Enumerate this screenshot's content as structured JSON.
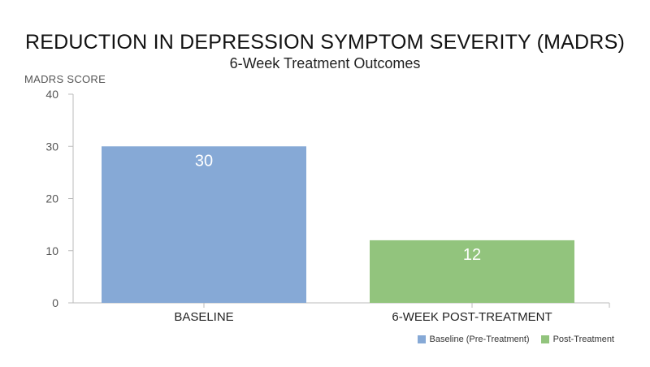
{
  "chart_data": {
    "type": "bar",
    "title": "REDUCTION IN DEPRESSION SYMPTOM SEVERITY (MADRS)",
    "subtitle": "6-Week Treatment Outcomes",
    "ylabel": "MADRS SCORE",
    "xlabel": "",
    "categories": [
      "BASELINE",
      "6-WEEK POST-TREATMENT"
    ],
    "values": [
      30,
      12
    ],
    "data_labels": [
      "30",
      "12"
    ],
    "ylim": [
      0,
      40
    ],
    "yticks": [
      0,
      10,
      20,
      30,
      40
    ],
    "grid": false,
    "bar_colors": [
      "#86a9d6",
      "#92c47d"
    ],
    "legend": {
      "placement": "bottom-right",
      "entries": [
        {
          "label": "Baseline (Pre-Treatment)",
          "color": "#86a9d6"
        },
        {
          "label": "Post-Treatment",
          "color": "#92c47d"
        }
      ]
    }
  }
}
